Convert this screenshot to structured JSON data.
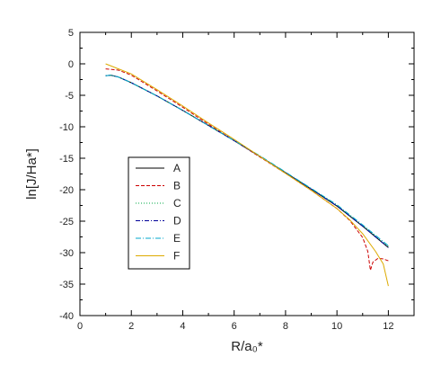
{
  "chart_data": {
    "type": "line",
    "xlabel": "R/a₀*",
    "ylabel": "ln[J/Ha*]",
    "xlim": [
      0,
      13
    ],
    "ylim": [
      -40,
      5
    ],
    "x_ticks": [
      "0",
      "2",
      "4",
      "6",
      "8",
      "10",
      "12"
    ],
    "y_ticks": [
      "5",
      "0",
      "-5",
      "-10",
      "-15",
      "-20",
      "-25",
      "-30",
      "-35",
      "-40"
    ],
    "grid": false,
    "legend_position": "left-middle",
    "series": [
      {
        "name": "A",
        "color": "#000000",
        "dash": "solid",
        "x": [
          1.0,
          1.2,
          1.5,
          2,
          3,
          4,
          5,
          6,
          7,
          8,
          9,
          10,
          11,
          12
        ],
        "y": [
          -1.9,
          -1.8,
          -2.1,
          -3.0,
          -5.1,
          -7.4,
          -9.8,
          -12.2,
          -14.7,
          -17.3,
          -19.9,
          -22.6,
          -25.8,
          -29.2
        ]
      },
      {
        "name": "B",
        "color": "#cc0000",
        "dash": "4,2",
        "x": [
          1.0,
          1.5,
          2,
          3,
          4,
          5,
          6,
          7,
          8,
          9,
          10,
          10.5,
          11,
          11.2,
          11.3,
          11.4,
          11.6,
          11.8,
          12.0
        ],
        "y": [
          -0.8,
          -1.0,
          -1.8,
          -4.3,
          -6.9,
          -9.6,
          -12.2,
          -14.8,
          -17.4,
          -20.1,
          -23.0,
          -24.9,
          -27.6,
          -29.8,
          -32.8,
          -31.5,
          -30.9,
          -31.0,
          -31.3
        ]
      },
      {
        "name": "C",
        "color": "#00aa44",
        "dash": "1,2",
        "x": [
          1.0,
          1.2,
          1.5,
          2,
          3,
          4,
          5,
          6,
          7,
          8,
          9,
          10,
          11,
          12
        ],
        "y": [
          -1.9,
          -1.8,
          -2.1,
          -3.0,
          -5.1,
          -7.4,
          -9.8,
          -12.2,
          -14.7,
          -17.3,
          -19.8,
          -22.5,
          -25.7,
          -29.0
        ]
      },
      {
        "name": "D",
        "color": "#000099",
        "dash": "5,2,1,2",
        "x": [
          1.0,
          1.2,
          1.5,
          2,
          3,
          4,
          5,
          6,
          7,
          8,
          9,
          10,
          11,
          12
        ],
        "y": [
          -1.9,
          -1.8,
          -2.1,
          -3.0,
          -5.1,
          -7.4,
          -9.8,
          -12.2,
          -14.7,
          -17.3,
          -19.9,
          -22.6,
          -25.8,
          -29.2
        ]
      },
      {
        "name": "E",
        "color": "#00aacc",
        "dash": "6,2,1,2",
        "x": [
          1.0,
          1.2,
          1.5,
          2,
          3,
          4,
          5,
          6,
          7,
          8,
          9,
          10,
          11,
          12
        ],
        "y": [
          -1.9,
          -1.8,
          -2.1,
          -3.0,
          -5.1,
          -7.4,
          -9.8,
          -12.2,
          -14.6,
          -17.2,
          -19.8,
          -22.4,
          -25.6,
          -28.9
        ]
      },
      {
        "name": "F",
        "color": "#ddaa00",
        "dash": "solid",
        "x": [
          1.0,
          1.5,
          2,
          3,
          4,
          5,
          6,
          7,
          8,
          9,
          10,
          10.5,
          11,
          11.5,
          11.8,
          12.0
        ],
        "y": [
          0.0,
          -0.8,
          -1.6,
          -4.1,
          -6.7,
          -9.4,
          -12.0,
          -14.7,
          -17.4,
          -20.1,
          -23.0,
          -24.8,
          -27.0,
          -29.8,
          -31.8,
          -35.3
        ]
      }
    ]
  }
}
